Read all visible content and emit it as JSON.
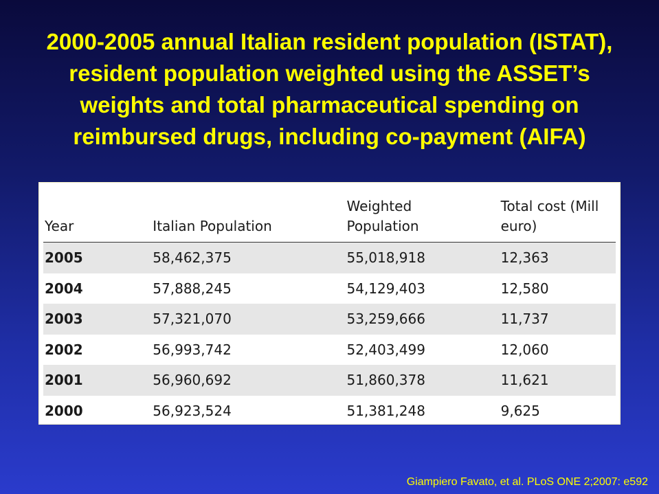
{
  "title": {
    "lines": [
      "2000-2005 annual Italian resident population (ISTAT),",
      "resident population weighted using the ASSET’s",
      "weights and total pharmaceutical spending on",
      "reimbursed drugs, including co-payment (AIFA)"
    ]
  },
  "table": {
    "headers": {
      "year": "Year",
      "population": "Italian Population",
      "weighted_line1": "Weighted",
      "weighted_line2": "Population",
      "cost_line1": "Total cost (Mill",
      "cost_line2": "euro)"
    },
    "rows": [
      {
        "year": "2005",
        "population": "58,462,375",
        "weighted": "55,018,918",
        "cost": "12,363"
      },
      {
        "year": "2004",
        "population": "57,888,245",
        "weighted": "54,129,403",
        "cost": "12,580"
      },
      {
        "year": "2003",
        "population": "57,321,070",
        "weighted": "53,259,666",
        "cost": "11,737"
      },
      {
        "year": "2002",
        "population": "56,993,742",
        "weighted": "52,403,499",
        "cost": "12,060"
      },
      {
        "year": "2001",
        "population": "56,960,692",
        "weighted": "51,860,378",
        "cost": "11,621"
      },
      {
        "year": "2000",
        "population": "56,923,524",
        "weighted": "51,381,248",
        "cost": "9,625"
      }
    ]
  },
  "citation": "Giampiero Favato, et al. PLoS ONE 2;2007: e592",
  "colors": {
    "title": "#ffff00",
    "background_top": "#0a0a3c",
    "background_bottom": "#2a3bcc",
    "row_shade": "#e6e6e6"
  }
}
